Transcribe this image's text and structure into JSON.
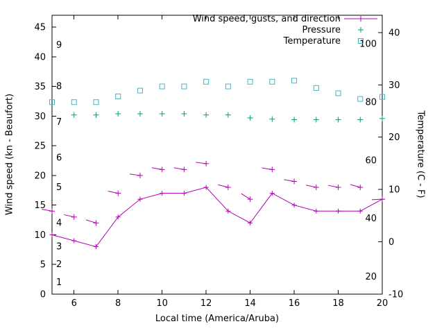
{
  "chart_data": {
    "type": "line",
    "title": "",
    "xlabel": "Local time (America/Aruba)",
    "ylabel": "Wind speed (kn - Beaufort)",
    "y2label": "Temperature (C - F)",
    "grid": false,
    "legend_position": "top-right",
    "x_range": [
      5,
      20
    ],
    "x_ticks": [
      6,
      8,
      10,
      12,
      14,
      16,
      18,
      20
    ],
    "y_left_range": [
      0,
      47
    ],
    "y_left_ticks": [
      0,
      5,
      10,
      15,
      20,
      25,
      30,
      35,
      40,
      45
    ],
    "y_right_range": [
      -10,
      43.3
    ],
    "y_right_ticks": [
      -10,
      0,
      10,
      20,
      30,
      40
    ],
    "beaufort_scale_labels": [
      {
        "label": "1",
        "kn": 2
      },
      {
        "label": "2",
        "kn": 5
      },
      {
        "label": "3",
        "kn": 8
      },
      {
        "label": "4",
        "kn": 12
      },
      {
        "label": "5",
        "kn": 18
      },
      {
        "label": "6",
        "kn": 23
      },
      {
        "label": "7",
        "kn": 29
      },
      {
        "label": "8",
        "kn": 35
      },
      {
        "label": "9",
        "kn": 42
      }
    ],
    "fahrenheit_scale_labels": [
      {
        "label": "20",
        "f": 20
      },
      {
        "label": "40",
        "f": 40
      },
      {
        "label": "60",
        "f": 60
      },
      {
        "label": "80",
        "f": 80
      },
      {
        "label": "100",
        "f": 100
      }
    ],
    "legend": [
      {
        "label": "Wind speed, gusts, and direction",
        "marker": "line-plus",
        "color": "#b400b4"
      },
      {
        "label": "Pressure",
        "marker": "plus",
        "color": "#009e73"
      },
      {
        "label": "Temperature",
        "marker": "square",
        "color": "#4ab2c0"
      }
    ],
    "series": [
      {
        "name": "wind-speed",
        "axis": "left",
        "style": "line-plus",
        "color": "#b400b4",
        "x": [
          5,
          6,
          7,
          8,
          9,
          10,
          11,
          12,
          13,
          14,
          15,
          16,
          17,
          18,
          19,
          20
        ],
        "y": [
          10,
          9,
          8,
          13,
          16,
          17,
          17,
          18,
          14,
          12,
          17,
          15,
          14,
          14,
          14,
          16
        ]
      },
      {
        "name": "gusts",
        "axis": "left",
        "style": "plus-barb",
        "color": "#b400b4",
        "x": [
          5,
          6,
          7,
          8,
          9,
          10,
          11,
          12,
          13,
          14,
          15,
          16,
          17,
          18,
          19,
          20
        ],
        "y": [
          14,
          13,
          12,
          17,
          20,
          21,
          21,
          22,
          18,
          16,
          21,
          19,
          18,
          18,
          18,
          16
        ],
        "barb_angles_deg": [
          170,
          167,
          163,
          168,
          172,
          170,
          170,
          173,
          166,
          148,
          171,
          170,
          168,
          169,
          164,
          183
        ]
      },
      {
        "name": "pressure",
        "axis": "left",
        "style": "plus",
        "color": "#009e73",
        "x": [
          6,
          7,
          8,
          9,
          10,
          11,
          12,
          13,
          14,
          15,
          16,
          17,
          18,
          19,
          20
        ],
        "y": [
          30.2,
          30.2,
          30.4,
          30.4,
          30.4,
          30.4,
          30.2,
          30.2,
          29.7,
          29.5,
          29.4,
          29.4,
          29.4,
          29.4,
          29.6
        ]
      },
      {
        "name": "temperature",
        "axis": "right",
        "style": "open-square",
        "color": "#4ab2c0",
        "x": [
          5,
          6,
          7,
          8,
          9,
          10,
          11,
          12,
          13,
          14,
          15,
          16,
          17,
          18,
          19,
          20
        ],
        "y": [
          26.7,
          26.7,
          26.7,
          27.8,
          28.9,
          29.7,
          29.7,
          30.6,
          29.7,
          30.6,
          30.6,
          30.8,
          29.4,
          28.4,
          27.3,
          27.7
        ]
      }
    ]
  }
}
